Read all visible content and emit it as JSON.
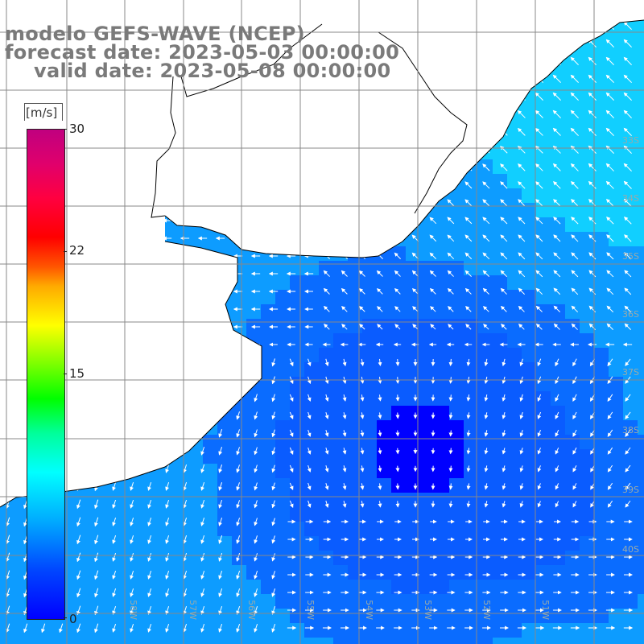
{
  "header": {
    "line1": "modelo GEFS-WAVE (NCEP)",
    "line2": "forecast date: 2023-05-03 00:00:00",
    "line3": "valid date: 2023-05-08 00:00:00"
  },
  "colorbar": {
    "units": "[m/s]",
    "ticks": [
      "30",
      "22",
      "15",
      "0"
    ],
    "range": [
      0,
      30
    ]
  },
  "map": {
    "lat_labels": [
      "33S",
      "34S",
      "35S",
      "36S",
      "37S",
      "38S",
      "39S",
      "40S"
    ],
    "lon_labels": [
      "58W",
      "57W",
      "56W",
      "55W",
      "54W",
      "53W",
      "52W",
      "51W"
    ],
    "colors": {
      "land": "#ffffff",
      "coast": "#000000",
      "grid": "#888888",
      "arrows": "#ffffff",
      "wind_low": "#0000ff",
      "wind_mid": "#0a6cff",
      "wind_high": "#11cfff"
    }
  }
}
